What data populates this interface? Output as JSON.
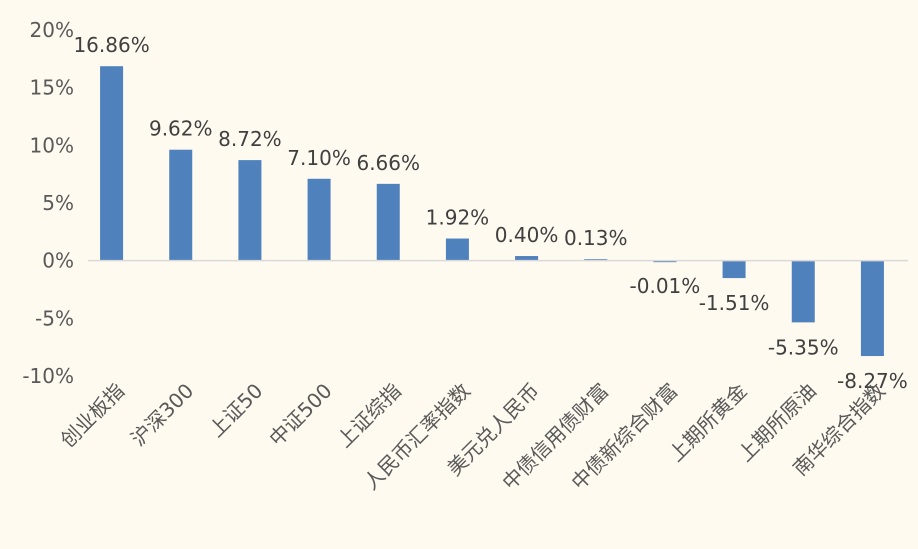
{
  "chart_data": {
    "type": "bar",
    "categories": [
      "创业板指",
      "沪深300",
      "上证50",
      "中证500",
      "上证综指",
      "人民币汇率指数",
      "美元兑人民币",
      "中债信用债财富",
      "中债新综合财富",
      "上期所黄金",
      "上期所原油",
      "南华综合指数"
    ],
    "values": [
      16.86,
      9.62,
      8.72,
      7.1,
      6.66,
      1.92,
      0.4,
      0.13,
      -0.01,
      -1.51,
      -5.35,
      -8.27
    ],
    "data_labels": [
      "16.86%",
      "9.62%",
      "8.72%",
      "7.10%",
      "6.66%",
      "1.92%",
      "0.40%",
      "0.13%",
      "-0.01%",
      "-1.51%",
      "-5.35%",
      "-8.27%"
    ],
    "ylim": [
      -10,
      20
    ],
    "yticks": [
      20,
      15,
      10,
      5,
      0,
      -5,
      -10
    ],
    "ytick_labels": [
      "20%",
      "15%",
      "10%",
      "5%",
      "0%",
      "-5%",
      "-10%"
    ],
    "title": "",
    "xlabel": "",
    "ylabel": "",
    "grid": false,
    "bar_color": "#4f81bd",
    "background": "#fefaf0"
  }
}
